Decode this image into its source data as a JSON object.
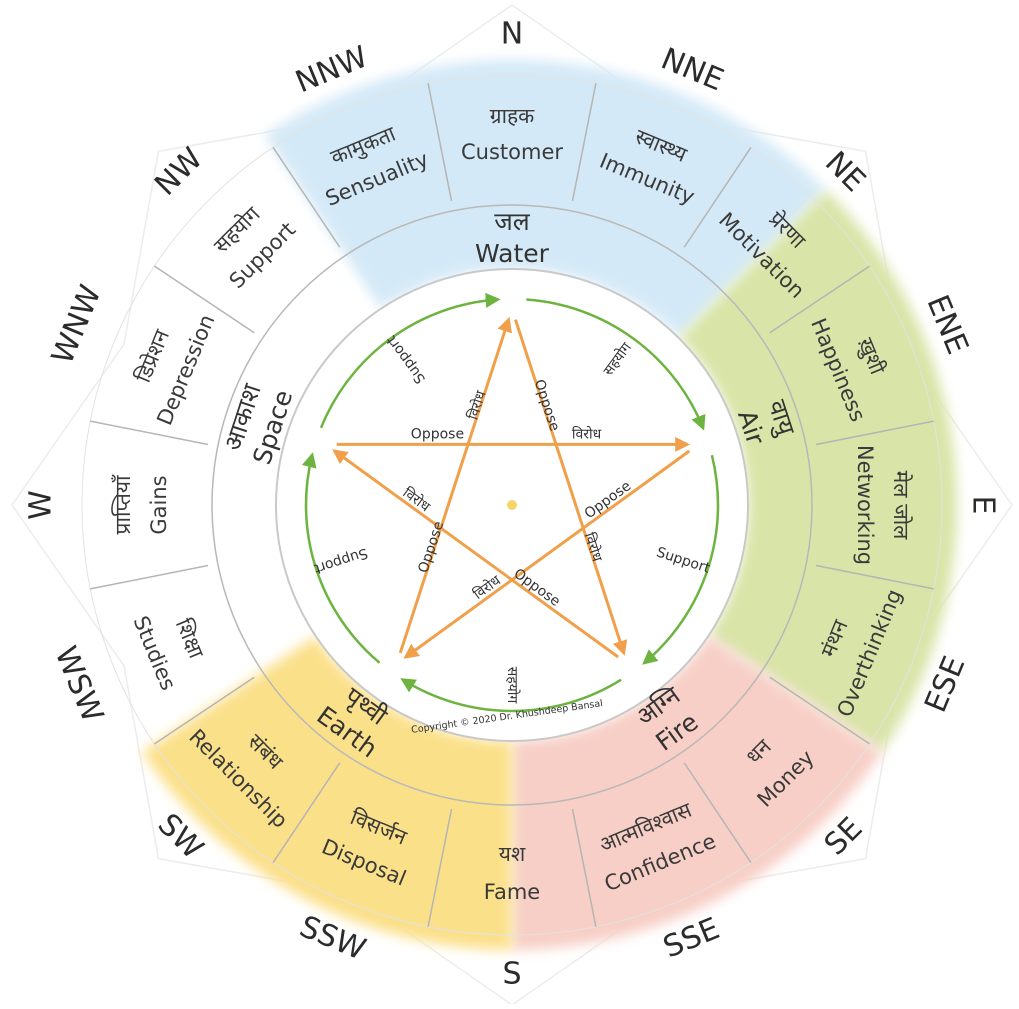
{
  "diagram": {
    "directions": [
      "N",
      "NNE",
      "NE",
      "ENE",
      "E",
      "ESE",
      "SE",
      "SSE",
      "S",
      "SSW",
      "SW",
      "WSW",
      "W",
      "WNW",
      "NW",
      "NNW"
    ],
    "zones": [
      {
        "hindi": "ग्राहक",
        "english": "Customer"
      },
      {
        "hindi": "स्वास्थ्य",
        "english": "Immunity"
      },
      {
        "hindi": "प्रेरणा",
        "english": "Motivation"
      },
      {
        "hindi": "ख़ुशी",
        "english": "Happiness"
      },
      {
        "hindi": "मेल जोल",
        "english": "Networking"
      },
      {
        "hindi": "मंथन",
        "english": "Overthinking"
      },
      {
        "hindi": "धन",
        "english": "Money"
      },
      {
        "hindi": "आत्मविश्वास",
        "english": "Confidence"
      },
      {
        "hindi": "यश",
        "english": "Fame"
      },
      {
        "hindi": "विसर्जन",
        "english": "Disposal"
      },
      {
        "hindi": "संबंध",
        "english": "Relationship"
      },
      {
        "hindi": "शिक्षा",
        "english": "Studies"
      },
      {
        "hindi": "प्राप्तियाँ",
        "english": "Gains"
      },
      {
        "hindi": "डिप्रेशन",
        "english": "Depression"
      },
      {
        "hindi": "सहयोग",
        "english": "Support"
      },
      {
        "hindi": "कामुकता",
        "english": "Sensuality"
      }
    ],
    "elements": [
      {
        "hindi": "जल",
        "english": "Water",
        "color": "#d4e9f7"
      },
      {
        "hindi": "वायु",
        "english": "Air",
        "color": "#d9e4a8"
      },
      {
        "hindi": "अग्नि",
        "english": "Fire",
        "color": "#f7cfc6"
      },
      {
        "hindi": "पृथ्वी",
        "english": "Earth",
        "color": "#fbe08a"
      },
      {
        "hindi": "आकाश",
        "english": "Space",
        "color": "#ffffff"
      }
    ],
    "relations": {
      "support_en": "Support",
      "support_hi": "सहयोग",
      "oppose_en": "Oppose",
      "oppose_hi": "विरोध"
    },
    "copyright": "Copyright © 2020 Dr. Khushdeep Bansal",
    "colors": {
      "support_arrow": "#6cb33f",
      "oppose_arrow": "#f0a04b",
      "center_dot": "#f5d66b",
      "ring_line": "#b8b8b8"
    }
  }
}
